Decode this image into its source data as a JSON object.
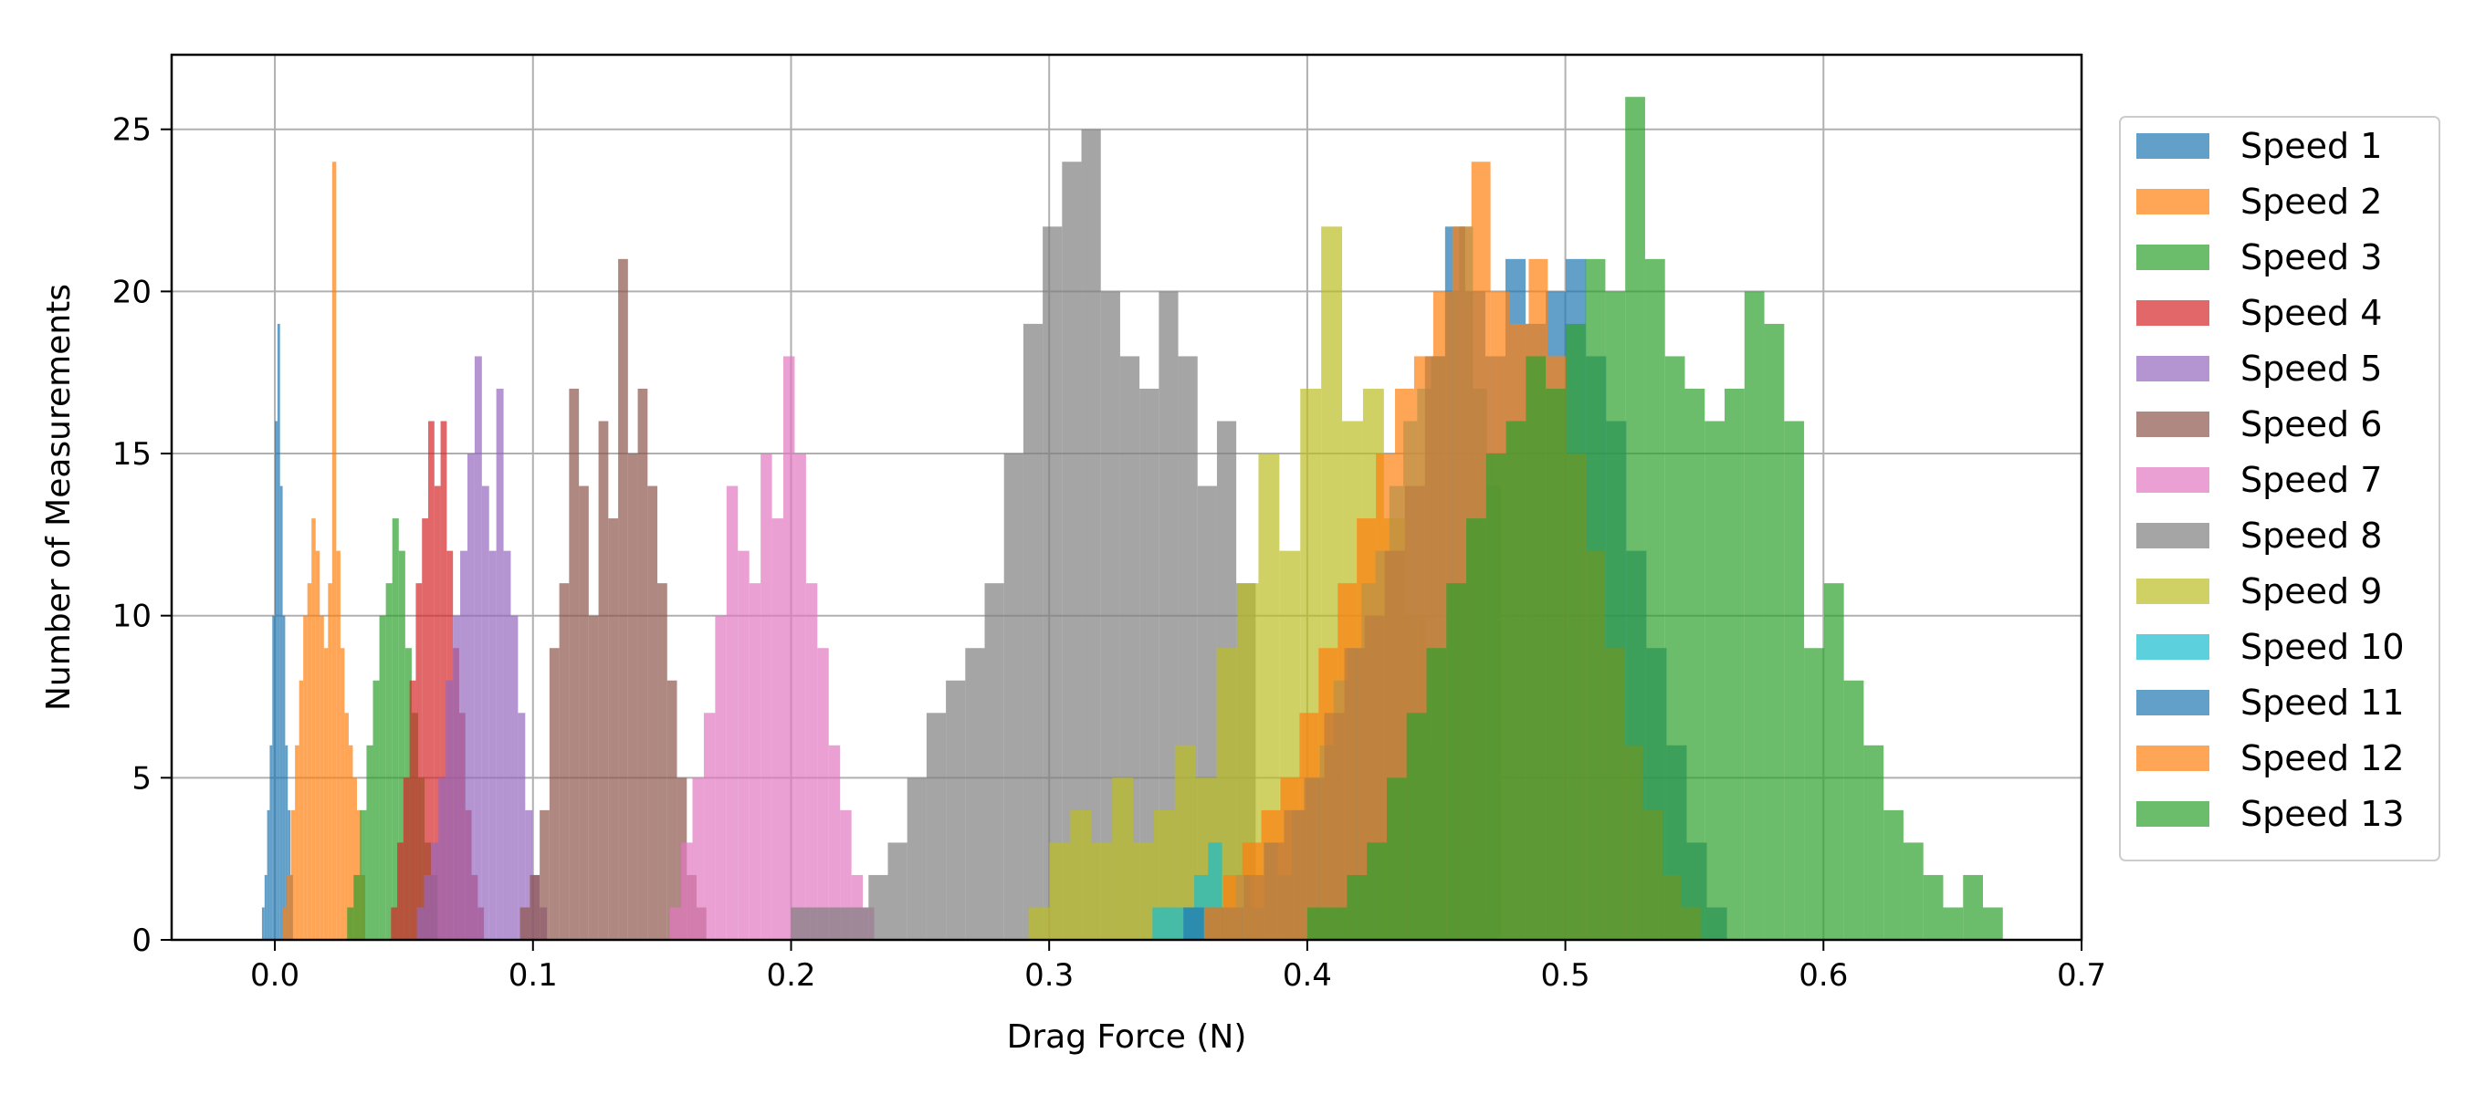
{
  "chart_data": {
    "type": "histogram",
    "xlabel": "Drag Force (N)",
    "ylabel": "Number of Measurements",
    "xlim": [
      -0.04,
      0.7
    ],
    "ylim": [
      0,
      27.3
    ],
    "xticks": [
      0.0,
      0.1,
      0.2,
      0.3,
      0.4,
      0.5,
      0.6,
      0.7
    ],
    "xtick_labels": [
      "0.0",
      "0.1",
      "0.2",
      "0.3",
      "0.4",
      "0.5",
      "0.6",
      "0.7"
    ],
    "yticks": [
      0,
      5,
      10,
      15,
      20,
      25
    ],
    "ytick_labels": [
      "0",
      "5",
      "10",
      "15",
      "20",
      "25"
    ],
    "grid": true,
    "legend_position": "right, outside plot",
    "series": [
      {
        "name": "Speed 1",
        "color": "#1f77b4",
        "bin_start": -0.005,
        "bin_width": 0.001,
        "counts": [
          1,
          2,
          4,
          6,
          10,
          16,
          19,
          14,
          10,
          6,
          4,
          2
        ]
      },
      {
        "name": "Speed 2",
        "color": "#ff7f0e",
        "bin_start": 0.003,
        "bin_width": 0.0016,
        "counts": [
          1,
          2,
          4,
          6,
          8,
          10,
          11,
          13,
          12,
          10,
          9,
          11,
          24,
          12,
          9,
          7,
          6,
          5,
          4,
          2
        ]
      },
      {
        "name": "Speed 3",
        "color": "#2ca02c",
        "bin_start": 0.028,
        "bin_width": 0.0025,
        "counts": [
          1,
          2,
          4,
          6,
          8,
          10,
          11,
          13,
          12,
          9,
          7,
          5,
          3,
          2
        ]
      },
      {
        "name": "Speed 4",
        "color": "#d62728",
        "bin_start": 0.045,
        "bin_width": 0.0024,
        "counts": [
          1,
          3,
          5,
          8,
          11,
          13,
          16,
          14,
          16,
          12,
          9,
          7,
          4,
          2,
          1
        ]
      },
      {
        "name": "Speed 5",
        "color": "#9467bd",
        "bin_start": 0.055,
        "bin_width": 0.0028,
        "counts": [
          1,
          2,
          3,
          5,
          8,
          10,
          12,
          15,
          18,
          14,
          12,
          17,
          12,
          10,
          7,
          4,
          2,
          1
        ]
      },
      {
        "name": "Speed 6",
        "color": "#8c564b",
        "bin_start": 0.095,
        "bin_width": 0.0038,
        "counts": [
          1,
          2,
          4,
          9,
          11,
          17,
          14,
          10,
          16,
          13,
          21,
          15,
          17,
          14,
          11,
          8,
          5,
          2,
          1
        ]
      },
      {
        "name": "Speed 7",
        "color": "#e377c2",
        "bin_start": 0.153,
        "bin_width": 0.0044,
        "counts": [
          1,
          3,
          5,
          7,
          10,
          14,
          12,
          11,
          15,
          13,
          18,
          15,
          11,
          9,
          6,
          4,
          2,
          1
        ]
      },
      {
        "name": "Speed 8",
        "color": "#7f7f7f",
        "bin_start": 0.2,
        "bin_width": 0.0075,
        "counts": [
          1,
          1,
          1,
          1,
          2,
          3,
          5,
          7,
          8,
          9,
          11,
          15,
          19,
          22,
          24,
          25,
          20,
          18,
          17,
          20,
          18,
          14,
          16,
          11
        ]
      },
      {
        "name": "Speed 9",
        "color": "#bcbd22",
        "bin_start": 0.292,
        "bin_width": 0.0081,
        "counts": [
          1,
          3,
          4,
          3,
          5,
          3,
          4,
          6,
          5,
          9,
          11,
          15,
          12,
          17,
          22,
          16,
          17,
          13,
          10,
          6,
          3,
          1
        ]
      },
      {
        "name": "Speed 10",
        "color": "#17becf",
        "bin_start": 0.34,
        "bin_width": 0.0054,
        "counts": [
          1,
          1,
          1,
          2,
          3,
          1,
          2,
          1,
          3,
          2,
          4,
          5,
          6,
          8,
          9,
          11,
          12,
          14,
          16,
          17,
          18,
          20,
          22,
          17,
          14
        ]
      },
      {
        "name": "Speed 11",
        "color": "#1f77b4",
        "bin_start": 0.352,
        "bin_width": 0.0078,
        "counts": [
          1,
          1,
          1,
          2,
          3,
          4,
          5,
          7,
          9,
          10,
          12,
          14,
          18,
          22,
          20,
          18,
          21,
          19,
          20,
          21,
          18,
          16,
          12,
          9,
          6,
          3,
          1
        ]
      },
      {
        "name": "Speed 12",
        "color": "#ff7f0e",
        "bin_start": 0.36,
        "bin_width": 0.0074,
        "counts": [
          1,
          2,
          3,
          4,
          5,
          7,
          9,
          11,
          13,
          15,
          17,
          18,
          20,
          22,
          24,
          20,
          19,
          21,
          18,
          15,
          12,
          9,
          6,
          4,
          2,
          1
        ]
      },
      {
        "name": "Speed 13",
        "color": "#2ca02c",
        "bin_start": 0.4,
        "bin_width": 0.0077,
        "counts": [
          1,
          1,
          2,
          3,
          5,
          7,
          9,
          11,
          13,
          15,
          16,
          18,
          17,
          19,
          21,
          20,
          26,
          21,
          18,
          17,
          16,
          17,
          20,
          19,
          16,
          9,
          11,
          8,
          6,
          4,
          3,
          2,
          1,
          2,
          1
        ]
      }
    ]
  }
}
